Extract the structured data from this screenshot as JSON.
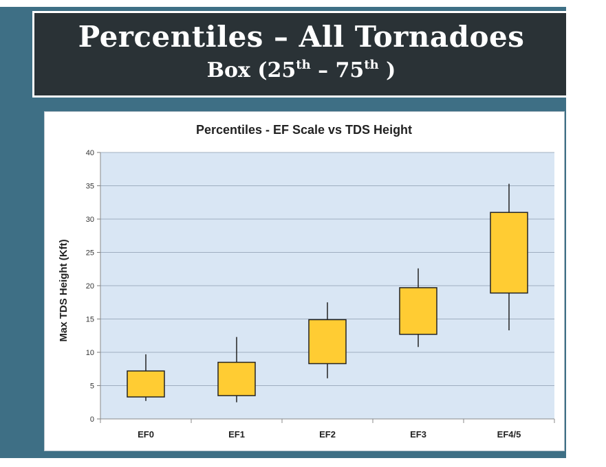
{
  "slide": {
    "title": "Percentiles – All Tornadoes",
    "subtitle_prefix": "Box (25",
    "subtitle_sup1": "th",
    "subtitle_mid": " – 75",
    "subtitle_sup2": "th",
    "subtitle_suffix": " )"
  },
  "colors": {
    "slide_bg": "#3e6f85",
    "header_bg": "#2a3236",
    "plot_bg": "#d9e6f4",
    "box_fill": "#ffcc33",
    "box_stroke": "#222222",
    "gridline": "#8a9aae"
  },
  "chart_data": {
    "type": "box",
    "title": "Percentiles - EF Scale vs TDS Height",
    "xlabel": "",
    "ylabel": "Max TDS Height (Kft)",
    "ylim": [
      0,
      40
    ],
    "yticks": [
      0,
      5,
      10,
      15,
      20,
      25,
      30,
      35,
      40
    ],
    "grid": true,
    "legend": "none",
    "categories": [
      "EF0",
      "EF1",
      "EF2",
      "EF3",
      "EF4/5"
    ],
    "whisker_low": [
      2.7,
      2.5,
      6.1,
      10.8,
      13.3
    ],
    "q1": [
      3.3,
      3.5,
      8.3,
      12.7,
      18.9
    ],
    "q3": [
      7.2,
      8.5,
      14.9,
      19.7,
      31.0
    ],
    "whisker_high": [
      9.7,
      12.3,
      17.5,
      22.6,
      35.3
    ]
  }
}
